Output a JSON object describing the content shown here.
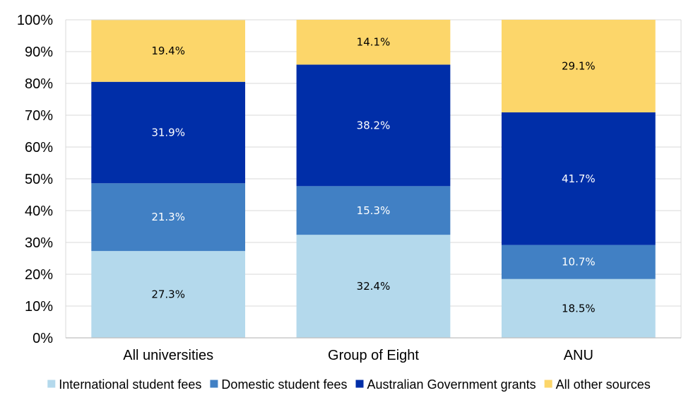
{
  "chart_data": {
    "type": "bar",
    "stacked": true,
    "categories": [
      "All universities",
      "Group of Eight",
      "ANU"
    ],
    "series": [
      {
        "name": "International student fees",
        "color": "#B4D9EC",
        "label_color": "#000000",
        "values": [
          27.3,
          32.4,
          18.5
        ],
        "labels": [
          "27.3%",
          "32.4%",
          "18.5%"
        ]
      },
      {
        "name": "Domestic student fees",
        "color": "#4180C4",
        "label_color": "#ffffff",
        "values": [
          21.3,
          15.3,
          10.7
        ],
        "labels": [
          "21.3%",
          "15.3%",
          "10.7%"
        ]
      },
      {
        "name": "Australian Government grants",
        "color": "#002EA8",
        "label_color": "#ffffff",
        "values": [
          31.9,
          38.2,
          41.7
        ],
        "labels": [
          "31.9%",
          "38.2%",
          "41.7%"
        ]
      },
      {
        "name": "All other sources",
        "color": "#FCD66A",
        "label_color": "#000000",
        "values": [
          19.4,
          14.1,
          29.1
        ],
        "labels": [
          "19.4%",
          "14.1%",
          "29.1%"
        ]
      }
    ],
    "yticks": [
      "0%",
      "10%",
      "20%",
      "30%",
      "40%",
      "50%",
      "60%",
      "70%",
      "80%",
      "90%",
      "100%"
    ],
    "ylim": [
      0,
      100
    ],
    "grid": true,
    "legend_position": "bottom",
    "title": "",
    "xlabel": "",
    "ylabel": ""
  }
}
